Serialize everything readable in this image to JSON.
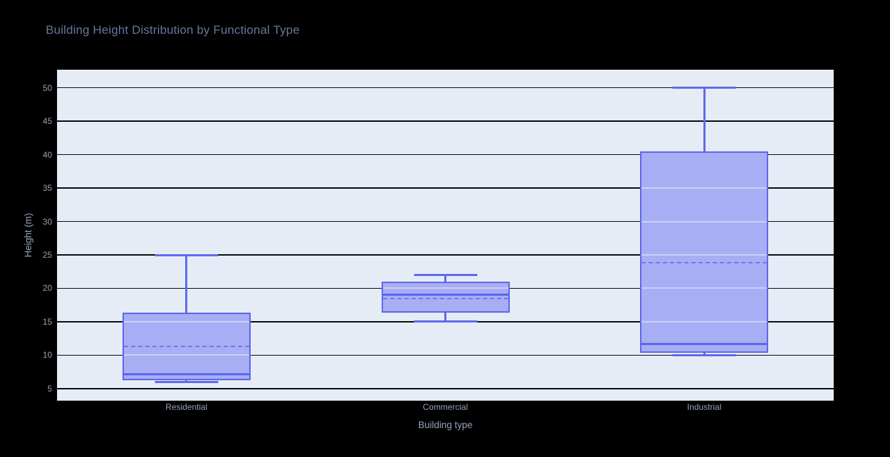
{
  "chart_data": {
    "type": "box",
    "title": "Building Height Distribution by Functional Type",
    "xlabel": "Building type",
    "ylabel": "Height (m)",
    "categories": [
      "Residential",
      "Commercial",
      "Industrial"
    ],
    "series": [
      {
        "name": "Residential",
        "min": 6,
        "q1": 6.3,
        "median": 7.2,
        "mean": 11.3,
        "q3": 16.4,
        "max": 25
      },
      {
        "name": "Commercial",
        "min": 15,
        "q1": 16.4,
        "median": 19.1,
        "mean": 18.5,
        "q3": 21,
        "max": 22
      },
      {
        "name": "Industrial",
        "min": 10,
        "q1": 10.4,
        "median": 11.7,
        "mean": 23.8,
        "q3": 40.5,
        "max": 50
      }
    ],
    "yticks": [
      5,
      10,
      15,
      20,
      25,
      30,
      35,
      40,
      45,
      50
    ],
    "ylim": [
      3.2,
      52.7
    ],
    "grid": true,
    "legend": false,
    "mean_line_style": "dashed",
    "orientation": "vertical"
  },
  "colors": {
    "page_bg": "#000000",
    "plot_bg": "#e6ecf5",
    "gridline": "#0b0b0d",
    "box_fill": "#a7aef3",
    "box_border": "#5b66ee",
    "median_line": "#5b66ee",
    "mean_line": "#6f78f0",
    "whisker": "#5f6aee",
    "inner_gridline": "rgba(255,255,255,0.42)",
    "title_text": "#67779c",
    "axis_text": "#94a1bb"
  }
}
